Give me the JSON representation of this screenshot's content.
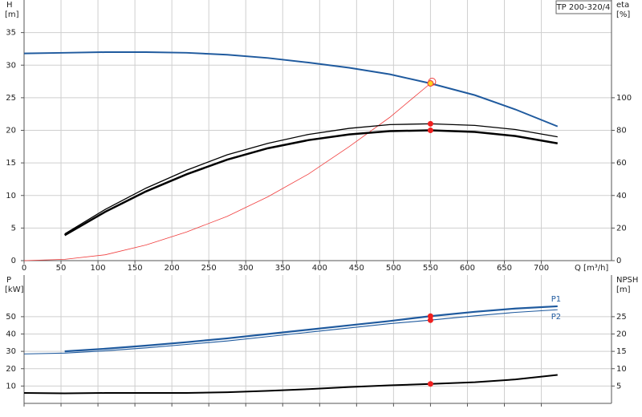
{
  "chart_data": [
    {
      "type": "line",
      "title": "TP 200-320/4",
      "xlabel": "Q [m³/h]",
      "ylabel": "H",
      "yunit": "[m]",
      "y2label": "eta",
      "y2unit": "[%]",
      "x": [
        0,
        55,
        110,
        165,
        220,
        275,
        330,
        385,
        440,
        495,
        550,
        610,
        665,
        722
      ],
      "xlim": [
        0,
        795
      ],
      "xticks": [
        0,
        50,
        100,
        150,
        200,
        250,
        300,
        350,
        400,
        450,
        500,
        550,
        600,
        650,
        700
      ],
      "xtick_labels": true,
      "ylim": [
        0,
        40
      ],
      "yticks": [
        0,
        5,
        10,
        15,
        20,
        25,
        30,
        35
      ],
      "y2lim": [
        0,
        160
      ],
      "y2ticks": [
        0,
        20,
        40,
        60,
        80,
        100
      ],
      "grid": true,
      "duty_x": 550,
      "series": [
        {
          "color": "#f03c3c",
          "line_width": 0.8,
          "values": [
            0,
            0.2,
            0.9,
            2.4,
            4.4,
            6.8,
            9.8,
            13.3,
            17.5,
            22,
            27.2,
            null,
            null,
            null
          ]
        },
        {
          "color": "#1f5a9e",
          "line_width": 2,
          "marker_color": "#ffd21f",
          "marker_stroke": "#f03c3c",
          "values": [
            31.8,
            31.9,
            32,
            32,
            31.9,
            31.6,
            31.1,
            30.4,
            29.6,
            28.6,
            27.2,
            25.4,
            23.2,
            20.6
          ]
        },
        {
          "color": "#000000",
          "line_width": 1.3,
          "axis": "y2",
          "marker_color": "#f02020",
          "values": [
            null,
            16.4,
            31.5,
            44.5,
            55.5,
            65,
            72,
            77.5,
            81.2,
            83.5,
            84,
            83,
            80.5,
            76
          ]
        },
        {
          "color": "#000000",
          "line_width": 2.5,
          "axis": "y2",
          "marker_color": "#f02020",
          "values": [
            null,
            15.6,
            30,
            42.5,
            53,
            62,
            69,
            74,
            77.5,
            79.5,
            80,
            79,
            76.5,
            72
          ]
        }
      ]
    },
    {
      "type": "line",
      "ylabel": "P",
      "yunit": "[kW]",
      "y2label": "NPSH",
      "y2unit": "[m]",
      "x": [
        0,
        55,
        110,
        165,
        220,
        275,
        330,
        385,
        440,
        495,
        550,
        610,
        665,
        722
      ],
      "xlim": [
        0,
        795
      ],
      "xticks": [
        0,
        50,
        100,
        150,
        200,
        250,
        300,
        350,
        400,
        450,
        500,
        550,
        600,
        650,
        700
      ],
      "xtick_labels": false,
      "ylim": [
        0,
        74
      ],
      "yticks": [
        10,
        20,
        30,
        40,
        50
      ],
      "y2lim": [
        0,
        37
      ],
      "y2ticks": [
        5,
        10,
        15,
        20,
        25
      ],
      "grid": true,
      "duty_x": 550,
      "series": [
        {
          "name": "P1",
          "color": "#1f5a9e",
          "line_width": 2.2,
          "marker_color": "#f02020",
          "values": [
            null,
            30,
            31.5,
            33.3,
            35.3,
            37.5,
            40,
            42.5,
            45,
            47.5,
            50.3,
            52.8,
            54.7,
            56
          ]
        },
        {
          "name": "P2",
          "color": "#1f5a9e",
          "line_width": 1.1,
          "marker_color": "#f02020",
          "values": [
            28.5,
            29,
            30.3,
            32,
            34,
            36,
            38.5,
            41,
            43.5,
            46,
            48,
            50.5,
            52.5,
            54
          ]
        },
        {
          "color": "#000000",
          "line_width": 2,
          "axis": "y2",
          "marker_color": "#f02020",
          "values": [
            3,
            2.9,
            3,
            3,
            3,
            3.2,
            3.6,
            4.1,
            4.7,
            5.2,
            5.6,
            6.1,
            6.9,
            8.2
          ]
        }
      ]
    }
  ]
}
